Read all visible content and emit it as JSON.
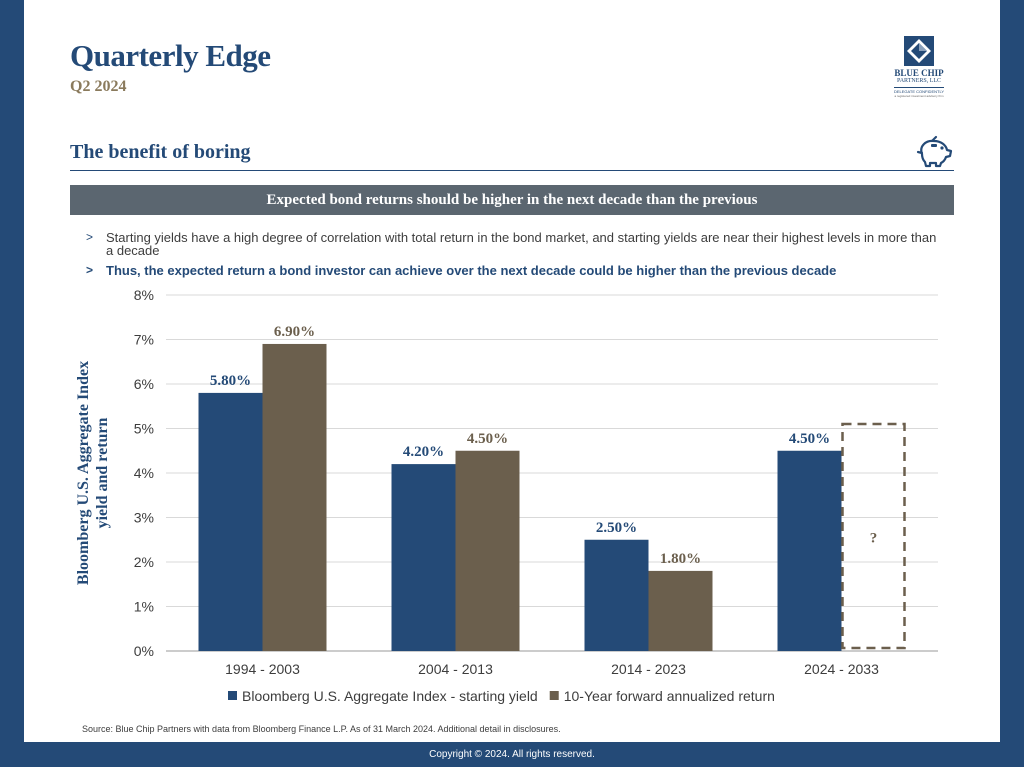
{
  "header": {
    "title": "Quarterly Edge",
    "subtitle": "Q2 2024"
  },
  "logo": {
    "name_line1": "BLUE CHIP",
    "name_line2": "PARTNERS, LLC",
    "tagline": "DELEGATE CONFIDENTLY",
    "fine_print": "a registered investment advisory firm"
  },
  "section": {
    "title": "The benefit of boring",
    "icon": "piggy-bank-icon"
  },
  "banner": {
    "text": "Expected bond returns should be higher in the next decade than the previous"
  },
  "bullets": [
    {
      "marker": ">",
      "text": "Starting yields have a high degree of correlation with total return in the bond market, and starting yields are near their highest levels in more than a decade"
    },
    {
      "marker": ">",
      "text": "Thus, the expected return a bond investor can achieve over the next decade could be higher than the previous decade"
    }
  ],
  "chart_data": {
    "type": "bar",
    "title": "",
    "ylabel": "Bloomberg U.S. Aggregate Index yield and return",
    "ylim": [
      0,
      8
    ],
    "yticks": [
      "0%",
      "1%",
      "2%",
      "3%",
      "4%",
      "5%",
      "6%",
      "7%",
      "8%"
    ],
    "grid": true,
    "legend_position": "bottom",
    "categories": [
      "1994 - 2003",
      "2004 - 2013",
      "2014 - 2023",
      "2024 - 2033"
    ],
    "series": [
      {
        "name": "Bloomberg U.S. Aggregate Index - starting yield",
        "color": "#244a77",
        "values": [
          5.8,
          4.2,
          2.5,
          4.5
        ],
        "labels": [
          "5.80%",
          "4.20%",
          "2.50%",
          "4.50%"
        ]
      },
      {
        "name": "10-Year forward annualized return",
        "color": "#6b5f4d",
        "values": [
          6.9,
          4.5,
          1.8,
          null
        ],
        "labels": [
          "6.90%",
          "4.50%",
          "1.80%",
          ""
        ]
      }
    ],
    "unknown_placeholder": {
      "category": "2024 - 2033",
      "series": "10-Year forward annualized return",
      "label": "?",
      "upper_value": 5.1
    }
  },
  "source_note": "Source: Blue Chip Partners with data from Bloomberg Finance L.P. As of 31 March 2024. Additional detail in disclosures.",
  "footer": {
    "copyright": "Copyright © 2024. All rights reserved."
  },
  "colors": {
    "brand_navy": "#244a77",
    "brand_taupe": "#6b5f4d",
    "banner_gray": "#5b6670",
    "subtitle_gold": "#8a7a5c"
  }
}
